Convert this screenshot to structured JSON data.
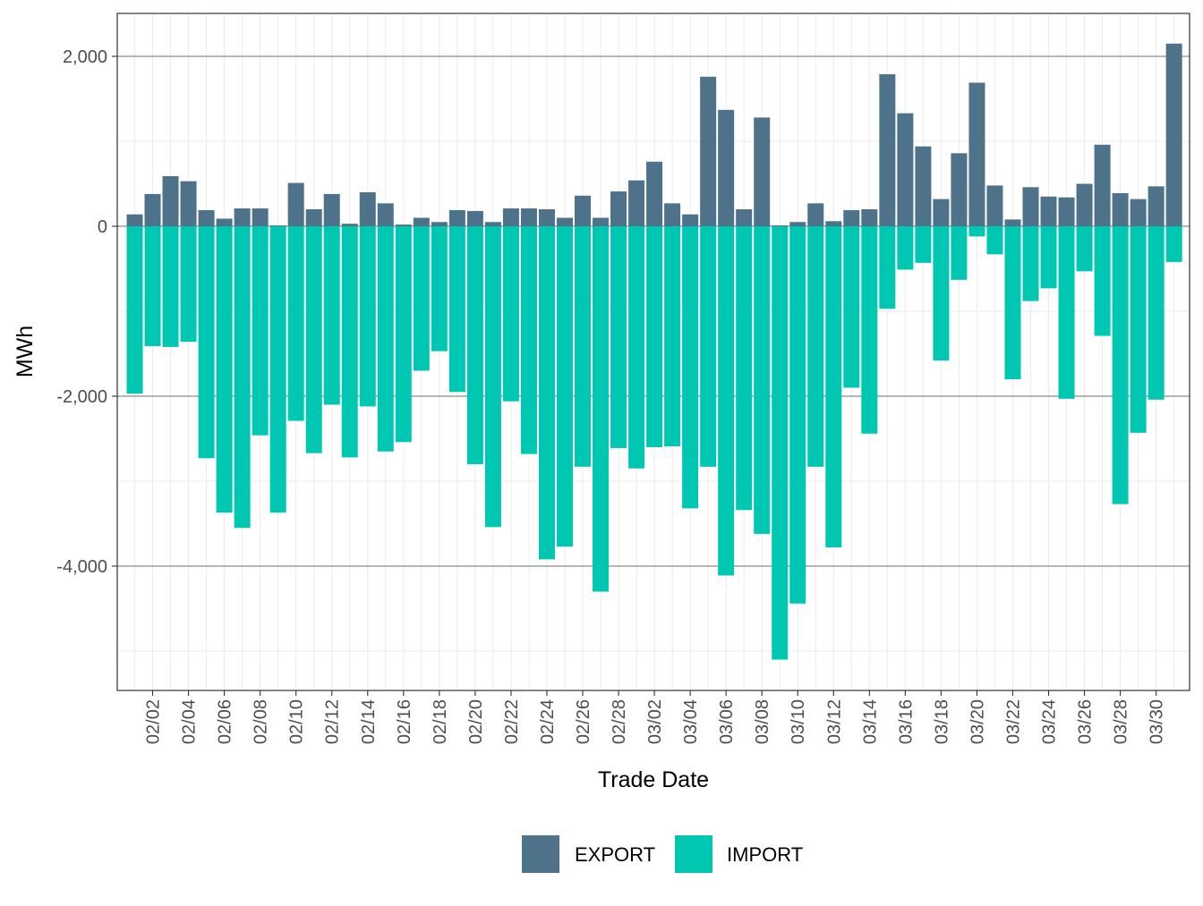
{
  "chart_data": {
    "type": "bar",
    "stacking": "diverging",
    "xlabel": "Trade Date",
    "ylabel": "MWh",
    "ylim": [
      -5250,
      2000
    ],
    "grid": true,
    "legend_position": "bottom",
    "x_tick_labels": [
      "02/02",
      "02/04",
      "02/06",
      "02/08",
      "02/10",
      "02/12",
      "02/14",
      "02/16",
      "02/18",
      "02/20",
      "02/22",
      "02/24",
      "02/26",
      "02/28",
      "03/02",
      "03/04",
      "03/06",
      "03/08",
      "03/10",
      "03/12",
      "03/14",
      "03/16",
      "03/18",
      "03/20",
      "03/22",
      "03/24",
      "03/26",
      "03/28",
      "03/30"
    ],
    "y_ticks": [
      2000,
      0,
      -2000,
      -4000
    ],
    "y_tick_labels": [
      "2,000",
      "0",
      "-2,000",
      "-4,000"
    ],
    "categories": [
      "02/01",
      "02/02",
      "02/03",
      "02/04",
      "02/05",
      "02/06",
      "02/07",
      "02/08",
      "02/09",
      "02/10",
      "02/11",
      "02/12",
      "02/13",
      "02/14",
      "02/15",
      "02/16",
      "02/17",
      "02/18",
      "02/19",
      "02/20",
      "02/21",
      "02/22",
      "02/23",
      "02/24",
      "02/25",
      "02/26",
      "02/27",
      "02/28",
      "03/01",
      "03/02",
      "03/03",
      "03/04",
      "03/05",
      "03/06",
      "03/07",
      "03/08",
      "03/09",
      "03/10",
      "03/11",
      "03/12",
      "03/13",
      "03/14",
      "03/15",
      "03/16",
      "03/17",
      "03/18",
      "03/19",
      "03/20",
      "03/21",
      "03/22",
      "03/23",
      "03/24",
      "03/25",
      "03/26",
      "03/27",
      "03/28",
      "03/29",
      "03/30",
      "03/31"
    ],
    "series": [
      {
        "name": "EXPORT",
        "color": "#4e7289",
        "values": [
          140,
          380,
          590,
          530,
          190,
          90,
          210,
          210,
          10,
          510,
          200,
          380,
          30,
          400,
          270,
          20,
          100,
          50,
          190,
          180,
          50,
          210,
          210,
          200,
          100,
          360,
          100,
          410,
          540,
          760,
          270,
          140,
          1760,
          1370,
          200,
          1280,
          10,
          50,
          270,
          60,
          190,
          200,
          1790,
          1330,
          940,
          320,
          860,
          1690,
          480,
          80,
          460,
          350,
          340,
          500,
          960,
          390,
          320,
          470,
          2150
        ]
      },
      {
        "name": "IMPORT",
        "color": "#00c7b1",
        "values": [
          -1970,
          -1410,
          -1420,
          -1360,
          -2730,
          -3370,
          -3550,
          -2460,
          -3370,
          -2290,
          -2670,
          -2100,
          -2720,
          -2120,
          -2650,
          -2540,
          -1700,
          -1470,
          -1950,
          -2800,
          -3540,
          -2060,
          -2680,
          -3920,
          -3770,
          -2830,
          -4300,
          -2610,
          -2850,
          -2600,
          -2590,
          -3320,
          -2830,
          -4110,
          -3340,
          -3620,
          -5100,
          -4440,
          -2830,
          -3780,
          -1900,
          -2440,
          -970,
          -510,
          -430,
          -1580,
          -630,
          -120,
          -330,
          -1800,
          -880,
          -730,
          -2030,
          -530,
          -1290,
          -3270,
          -2430,
          -2040,
          -420
        ]
      }
    ]
  }
}
